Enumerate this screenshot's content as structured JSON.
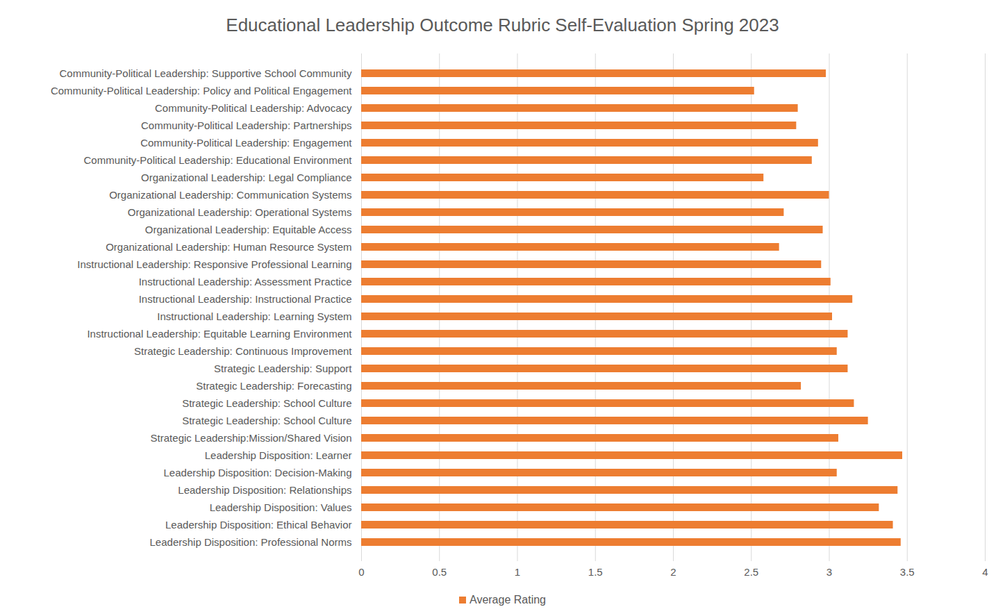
{
  "chart_data": {
    "type": "bar",
    "orientation": "horizontal",
    "title": "Educational Leadership Outcome Rubric Self-Evaluation Spring 2023",
    "categories": [
      "Community-Political Leadership: Supportive School Community",
      "Community-Political Leadership: Policy and Political Engagement",
      "Community-Political Leadership: Advocacy",
      "Community-Political Leadership: Partnerships",
      "Community-Political Leadership: Engagement",
      "Community-Political Leadership: Educational Environment",
      "Organizational Leadership: Legal Compliance",
      "Organizational Leadership: Communication Systems",
      "Organizational Leadership: Operational Systems",
      "Organizational Leadership: Equitable Access",
      "Organizational Leadership: Human Resource System",
      "Instructional Leadership: Responsive Professional Learning",
      "Instructional Leadership: Assessment Practice",
      "Instructional Leadership: Instructional Practice",
      "Instructional Leadership: Learning System",
      "Instructional Leadership: Equitable Learning Environment",
      "Strategic Leadership: Continuous Improvement",
      "Strategic Leadership: Support",
      "Strategic Leadership: Forecasting",
      "Strategic Leadership: School Culture",
      "Strategic Leadership: School Culture",
      "Strategic Leadership:Mission/Shared Vision",
      "Leadership Disposition: Learner",
      "Leadership Disposition: Decision-Making",
      "Leadership Disposition: Relationships",
      "Leadership Disposition: Values",
      "Leadership Disposition: Ethical Behavior",
      "Leadership Disposition: Professional Norms"
    ],
    "series": [
      {
        "name": "Average Rating",
        "color": "#ed7d31",
        "values": [
          2.98,
          2.52,
          2.8,
          2.79,
          2.93,
          2.89,
          2.58,
          3.0,
          2.71,
          2.96,
          2.68,
          2.95,
          3.01,
          3.15,
          3.02,
          3.12,
          3.05,
          3.12,
          2.82,
          3.16,
          3.25,
          3.06,
          3.47,
          3.05,
          3.44,
          3.32,
          3.41,
          3.46
        ]
      }
    ],
    "xlim": [
      0,
      4
    ],
    "xticks": [
      0,
      0.5,
      1,
      1.5,
      2,
      2.5,
      3,
      3.5,
      4
    ],
    "grid": true,
    "legend": "bottom"
  }
}
